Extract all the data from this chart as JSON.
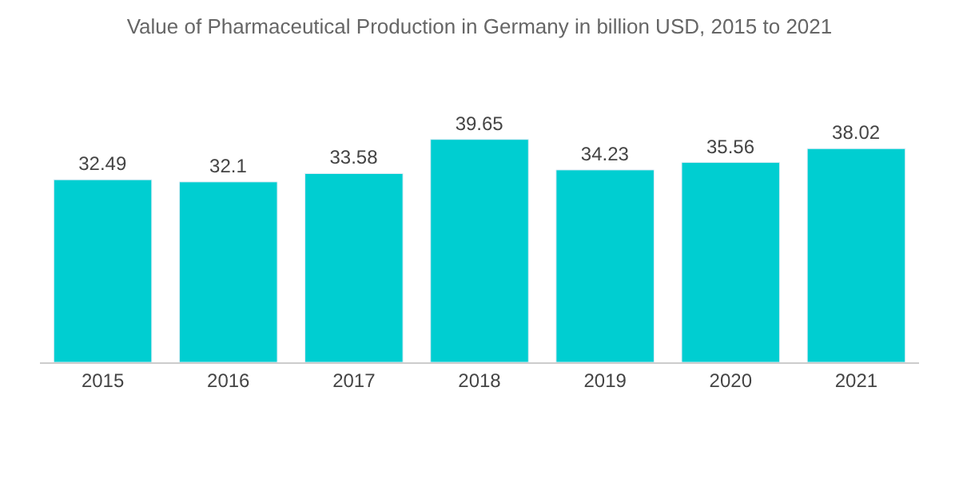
{
  "chart_data": {
    "type": "bar",
    "title": "Value of Pharmaceutical Production in Germany in billion USD, 2015 to 2021",
    "categories": [
      "2015",
      "2016",
      "2017",
      "2018",
      "2019",
      "2020",
      "2021"
    ],
    "values": [
      32.49,
      32.1,
      33.58,
      39.65,
      34.23,
      35.56,
      38.02
    ],
    "color": "#00ced1",
    "data_labels": true
  }
}
